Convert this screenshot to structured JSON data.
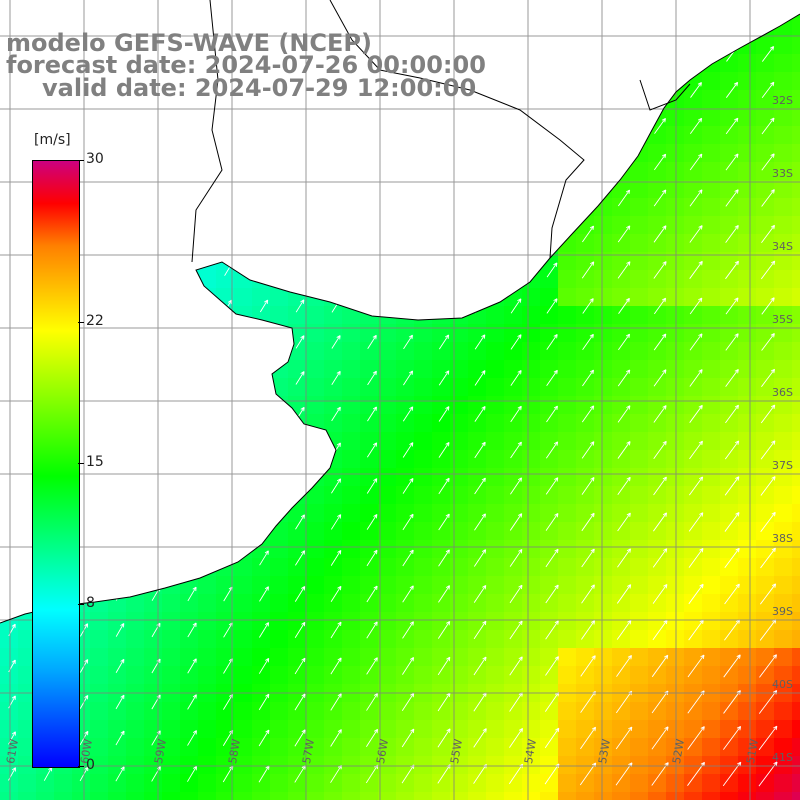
{
  "title": {
    "line1": "modelo GEFS-WAVE (NCEP)",
    "line2": "forecast date: 2024-07-26 00:00:00",
    "line3": "valid date: 2024-07-29 12:00:00"
  },
  "colorbar": {
    "unit": "[m/s]",
    "min": 0,
    "max": 30,
    "ticks": [
      {
        "value": 30,
        "label": "30"
      },
      {
        "value": 22,
        "label": "22"
      },
      {
        "value": 15,
        "label": "15"
      },
      {
        "value": 8,
        "label": "8"
      },
      {
        "value": 0,
        "label": "0"
      }
    ],
    "colors": [
      "#0000ff",
      "#00a8ff",
      "#00ffff",
      "#00ff00",
      "#80ff00",
      "#ffff00",
      "#ff8000",
      "#ff0000",
      "#cc0080"
    ]
  },
  "map": {
    "lat_labels": [
      "32S",
      "33S",
      "34S",
      "35S",
      "36S",
      "37S",
      "38S",
      "39S",
      "40S",
      "41S"
    ],
    "lon_labels": [
      "61W",
      "60W",
      "59W",
      "58W",
      "57W",
      "56W",
      "55W",
      "54W",
      "53W",
      "52W",
      "51W"
    ],
    "grid_color": "#808080",
    "coast_color": "#000000",
    "land_color": "#ffffff",
    "arrow_color": "#ffffff",
    "field": "wind speed with direction arrows"
  }
}
